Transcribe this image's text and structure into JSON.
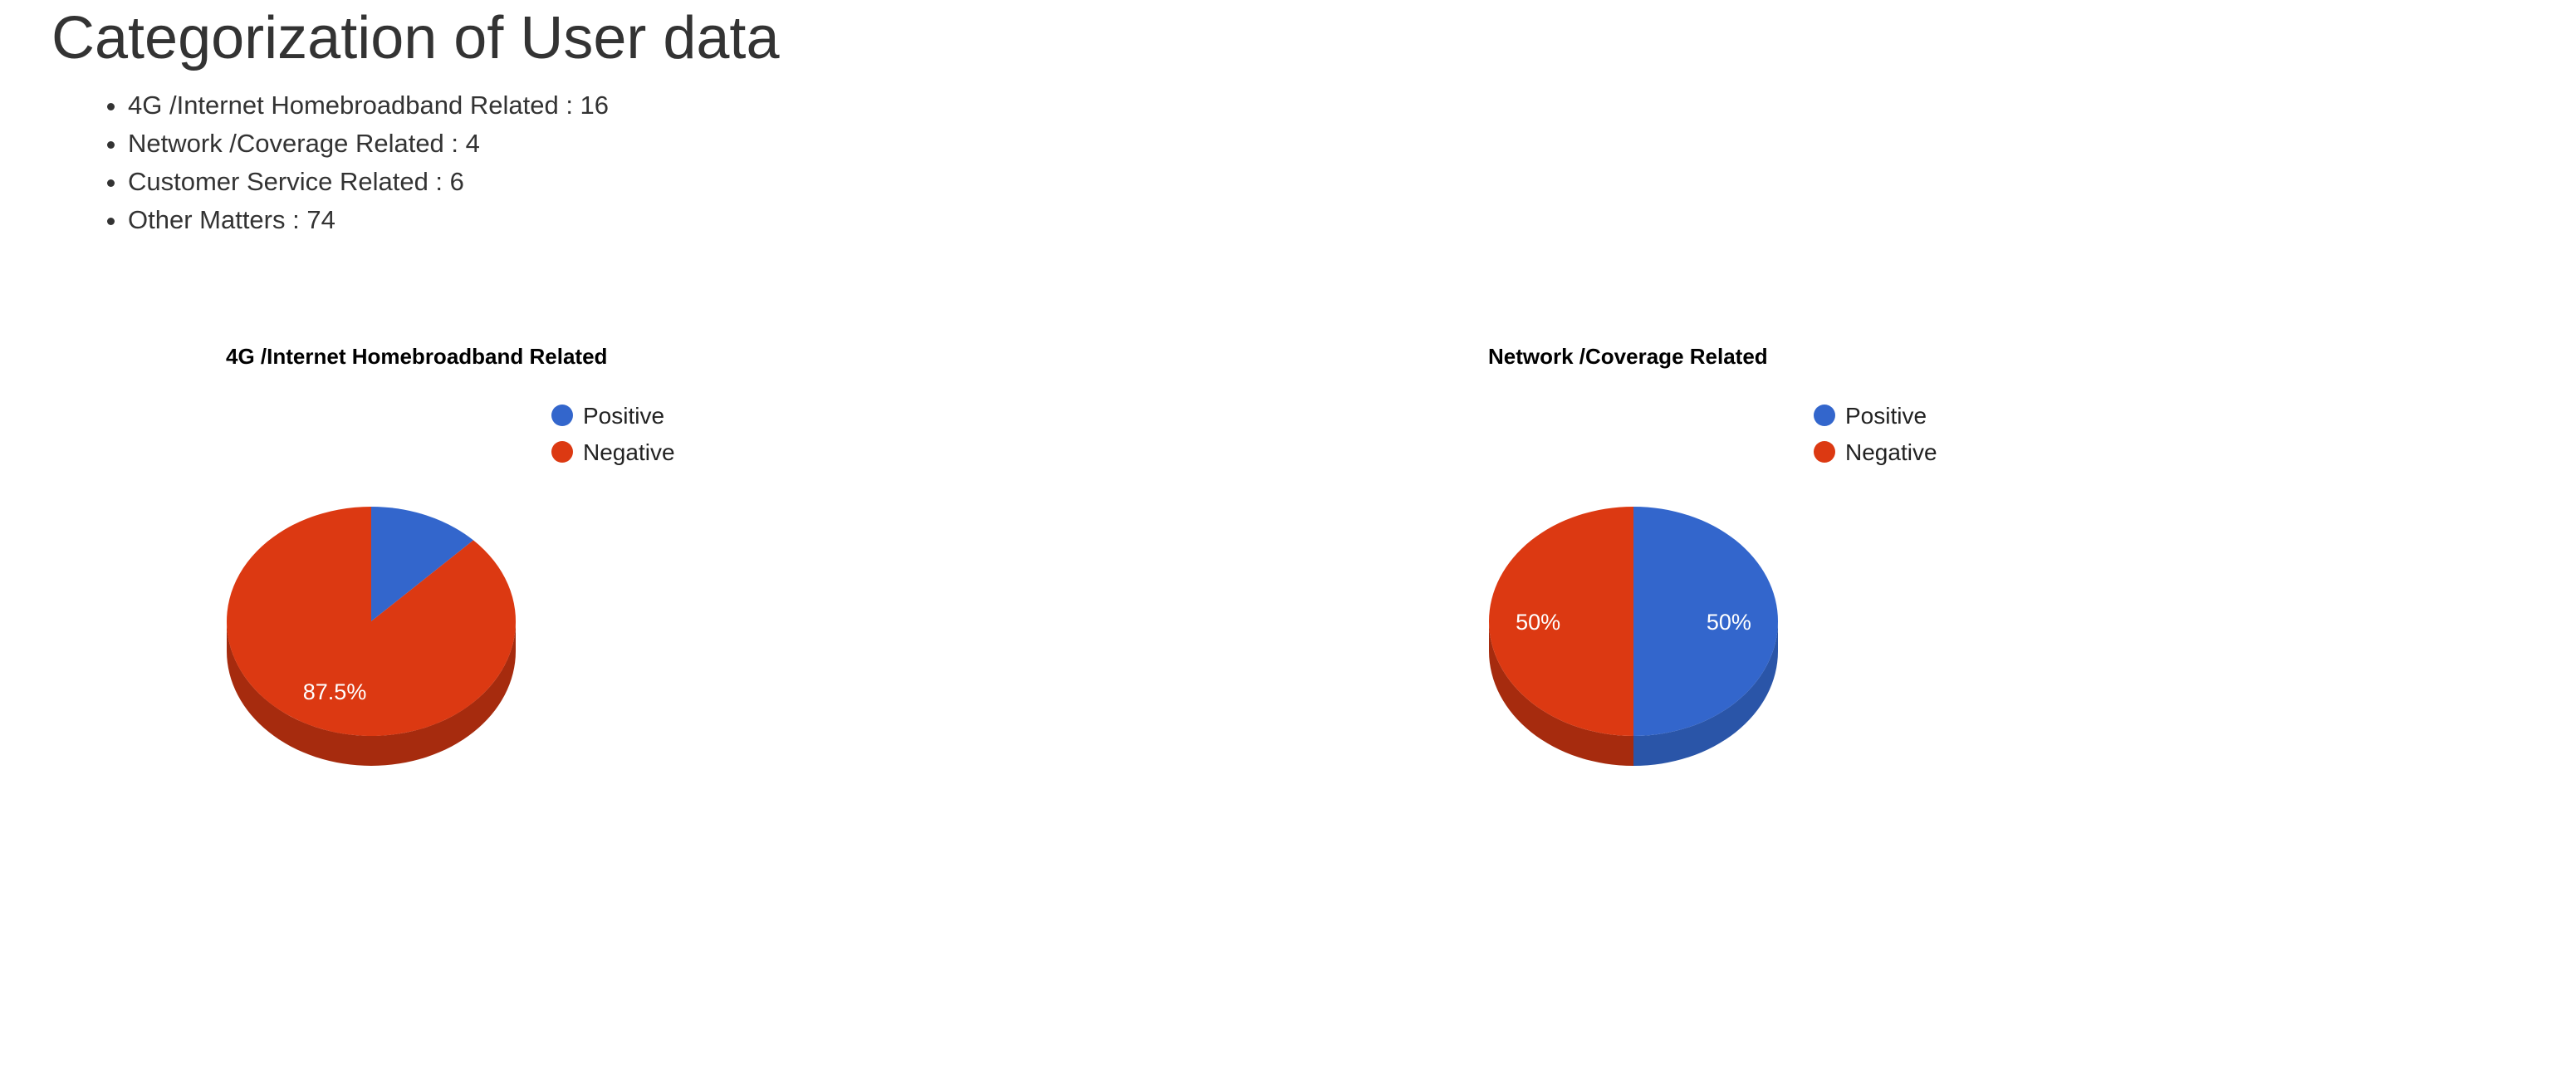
{
  "page": {
    "title": "Categorization of User data",
    "summary": [
      {
        "label": "4G /Internet Homebroadband Related",
        "value": 16,
        "text": "4G /Internet Homebroadband Related : 16"
      },
      {
        "label": "Network /Coverage Related",
        "value": 4,
        "text": "Network /Coverage Related : 4"
      },
      {
        "label": "Customer Service Related",
        "value": 6,
        "text": "Customer Service Related : 6"
      },
      {
        "label": "Other Matters",
        "value": 74,
        "text": "Other Matters : 74"
      }
    ]
  },
  "colors": {
    "positive": "#3366cc",
    "positive_side": "#2a55a8",
    "negative": "#dc3912",
    "negative_side": "#a62b0e"
  },
  "chart_data": [
    {
      "type": "pie",
      "title": "4G /Internet Homebroadband Related",
      "categories": [
        "Positive",
        "Negative"
      ],
      "values": [
        12.5,
        87.5
      ],
      "slice_labels": [
        "",
        "87.5%"
      ],
      "legend": "top-right",
      "three_d": true
    },
    {
      "type": "pie",
      "title": "Network /Coverage Related",
      "categories": [
        "Positive",
        "Negative"
      ],
      "values": [
        50,
        50
      ],
      "slice_labels": [
        "50%",
        "50%"
      ],
      "legend": "top-right",
      "three_d": true
    }
  ]
}
